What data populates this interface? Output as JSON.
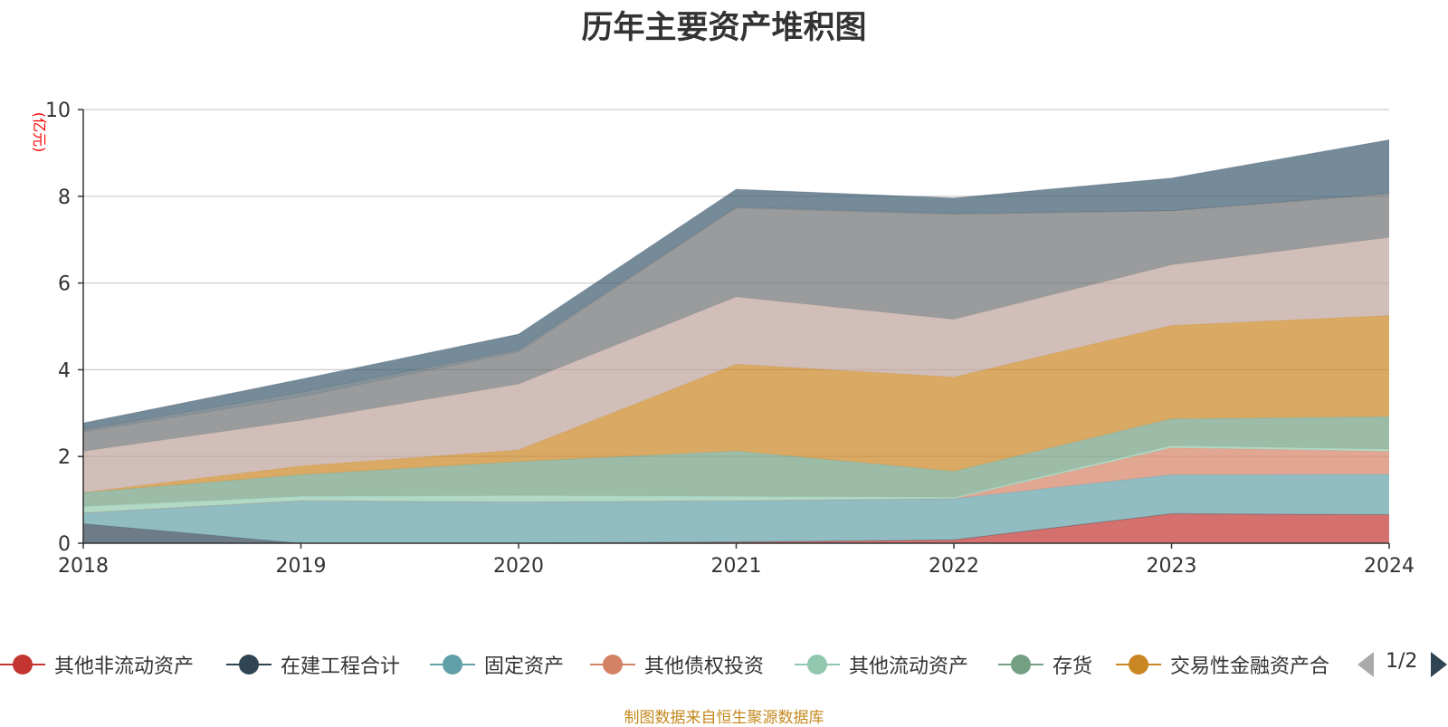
{
  "chart_data": {
    "type": "area",
    "stacked": true,
    "title": "历年主要资产堆积图",
    "ylabel": "(亿元)",
    "xlabel": "",
    "ylim": [
      0,
      10
    ],
    "yticks": [
      "0",
      "2",
      "4",
      "6",
      "8",
      "10"
    ],
    "categories": [
      "2018",
      "2019",
      "2020",
      "2021",
      "2022",
      "2023",
      "2024"
    ],
    "grid": true,
    "series": [
      {
        "name": "其他非流动资产",
        "color": "#c23531",
        "values": [
          0.0,
          0.0,
          0.0,
          0.03,
          0.08,
          0.68,
          0.66
        ]
      },
      {
        "name": "在建工程合计",
        "color": "#2f4554",
        "values": [
          0.45,
          0.0,
          0.0,
          0.0,
          0.0,
          0.0,
          0.0
        ]
      },
      {
        "name": "固定资产",
        "color": "#61a0a8",
        "values": [
          0.25,
          0.98,
          0.95,
          0.95,
          0.95,
          0.9,
          0.93
        ]
      },
      {
        "name": "其他债权投资",
        "color": "#d48265",
        "values": [
          0.0,
          0.0,
          0.0,
          0.0,
          0.0,
          0.62,
          0.53
        ]
      },
      {
        "name": "其他流动资产",
        "color": "#91c7ae",
        "values": [
          0.15,
          0.1,
          0.15,
          0.1,
          0.03,
          0.05,
          0.05
        ]
      },
      {
        "name": "存货",
        "color": "#749f83",
        "values": [
          0.32,
          0.5,
          0.78,
          1.05,
          0.6,
          0.62,
          0.75
        ]
      },
      {
        "name": "交易性金融资产合",
        "color": "#ca8622",
        "values": [
          0.0,
          0.2,
          0.27,
          2.0,
          2.17,
          2.15,
          2.33
        ]
      },
      {
        "name": "",
        "color": "#bda29a",
        "values": [
          0.95,
          1.05,
          1.52,
          1.55,
          1.33,
          1.4,
          1.8
        ]
      },
      {
        "name": "",
        "color": "#6e7074",
        "values": [
          0.45,
          0.55,
          0.75,
          2.05,
          2.42,
          1.25,
          1.0
        ]
      },
      {
        "name": "",
        "color": "#546570",
        "values": [
          0.05,
          0.1,
          0.05,
          0.03,
          0.03,
          0.0,
          0.03
        ]
      },
      {
        "name": "",
        "color": "#3c5a6e",
        "values": [
          0.15,
          0.3,
          0.35,
          0.4,
          0.35,
          0.75,
          1.22
        ]
      }
    ]
  },
  "legend": {
    "items": [
      {
        "label": "其他非流动资产",
        "color": "#c23531"
      },
      {
        "label": "在建工程合计",
        "color": "#2f4554"
      },
      {
        "label": "固定资产",
        "color": "#61a0a8"
      },
      {
        "label": "其他债权投资",
        "color": "#d48265"
      },
      {
        "label": "其他流动资产",
        "color": "#91c7ae"
      },
      {
        "label": "存货",
        "color": "#749f83"
      },
      {
        "label": "交易性金融资产合",
        "color": "#ca8622"
      }
    ],
    "page_indicator": "1/2"
  },
  "source_note": "制图数据来自恒生聚源数据库"
}
